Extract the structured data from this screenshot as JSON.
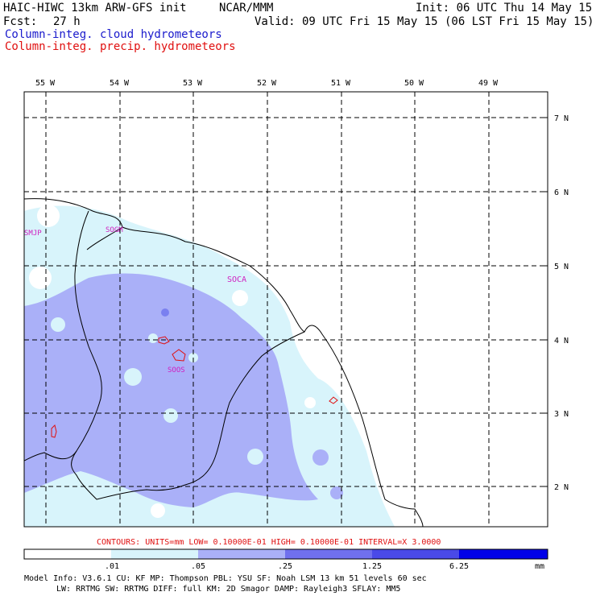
{
  "header": {
    "model": "HAIC-HIWC 13km ARW-GFS init",
    "org": "NCAR/MMM",
    "init": "Init: 06 UTC Thu 14 May 15",
    "fcst_label": "Fcst:",
    "fcst_value": "27 h",
    "valid": "Valid: 09 UTC Fri 15 May 15 (06 LST Fri 15 May 15)",
    "field1": "Column-integ. cloud hydrometeors",
    "field2": "Column-integ. precip. hydrometeors"
  },
  "map": {
    "longitudes": [
      "55 W",
      "54 W",
      "53 W",
      "52 W",
      "51 W",
      "50 W",
      "49 W"
    ],
    "latitudes": [
      "7 N",
      "6 N",
      "5 N",
      "4 N",
      "3 N",
      "2 N"
    ],
    "stations": [
      "SMJP",
      "SOGM",
      "SOCA",
      "SOOS"
    ]
  },
  "contours": "CONTOURS:  UNITS=mm  LOW= 0.10000E-01  HIGH= 0.10000E-01  INTERVAL=X  3.0000",
  "colorbar": {
    "labels": [
      ".01",
      ".05",
      ".25",
      "1.25",
      "6.25"
    ],
    "units": "mm",
    "colors": [
      "#ffffff",
      "#d8f4fb",
      "#aab0f8",
      "#7070ee",
      "#4a4ae8",
      "#2020e0",
      "#0000e8"
    ]
  },
  "model_info": {
    "line1": "Model Info: V3.6.1    CU: KF     MP: Thompson    PBL: YSU     SF: Noah LSM    13 km   51 levels   60 sec",
    "line2": "LW: RRTMG    SW: RRTMG   DIFF: full    KM: 2D Smagor DAMP: Rayleigh3   SFLAY: MM5"
  }
}
